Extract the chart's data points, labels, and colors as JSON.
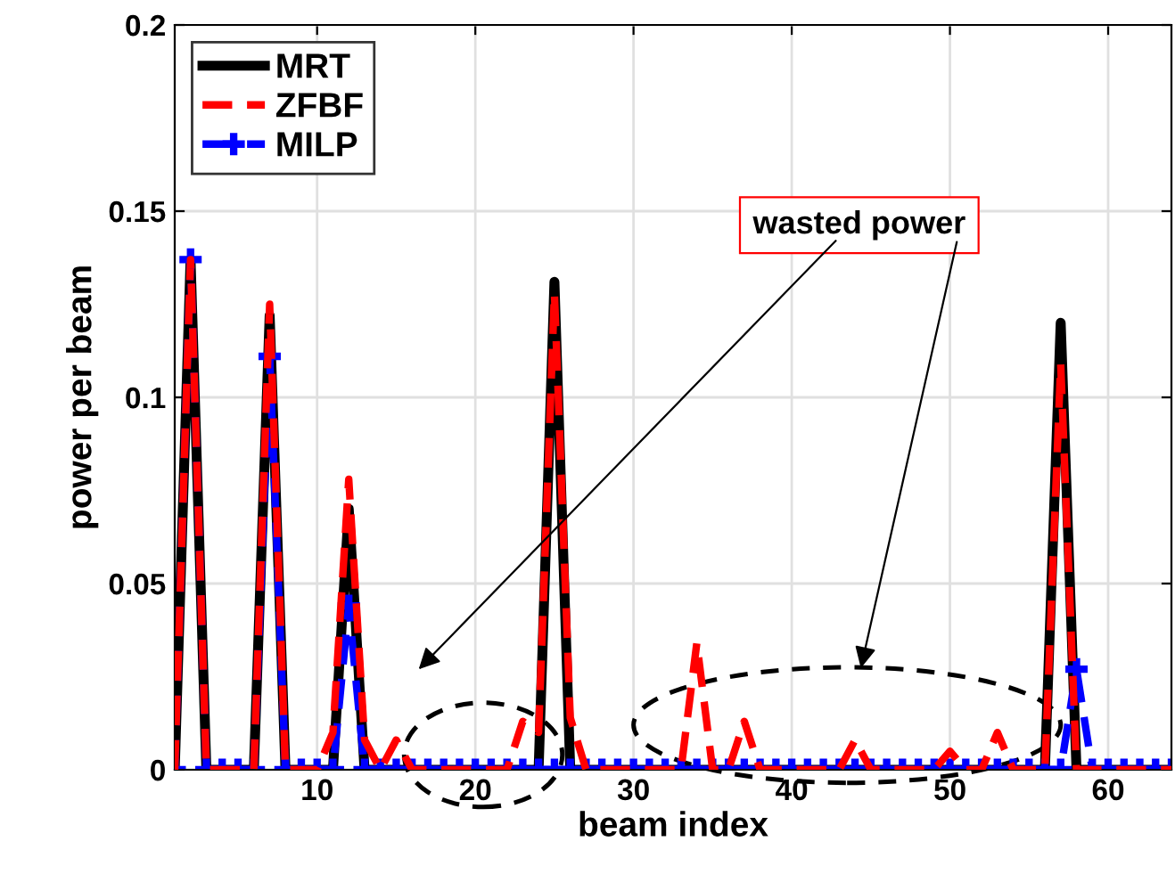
{
  "chart_data": {
    "type": "line",
    "xlabel": "beam index",
    "ylabel": "power per beam",
    "x": [
      1,
      2,
      3,
      4,
      5,
      6,
      7,
      8,
      9,
      10,
      11,
      12,
      13,
      14,
      15,
      16,
      17,
      18,
      19,
      20,
      21,
      22,
      23,
      24,
      25,
      26,
      27,
      28,
      29,
      30,
      31,
      32,
      33,
      34,
      35,
      36,
      37,
      38,
      39,
      40,
      41,
      42,
      43,
      44,
      45,
      46,
      47,
      48,
      49,
      50,
      51,
      52,
      53,
      54,
      55,
      56,
      57,
      58,
      59,
      60,
      61,
      62,
      63,
      64
    ],
    "series": [
      {
        "name": "MRT",
        "color": "#000000",
        "line_style": "solid",
        "marker": "none",
        "values": [
          0,
          0.137,
          0,
          0,
          0,
          0,
          0.122,
          0,
          0,
          0,
          0,
          0.07,
          0,
          0,
          0,
          0,
          0,
          0,
          0,
          0,
          0,
          0,
          0,
          0,
          0.131,
          0,
          0,
          0,
          0,
          0,
          0,
          0,
          0,
          0,
          0,
          0,
          0,
          0,
          0,
          0,
          0,
          0,
          0,
          0,
          0,
          0,
          0,
          0,
          0,
          0,
          0,
          0,
          0,
          0,
          0,
          0,
          0.12,
          0,
          0,
          0,
          0,
          0,
          0,
          0
        ]
      },
      {
        "name": "ZFBF",
        "color": "#ff0000",
        "line_style": "dashed",
        "marker": "none",
        "values": [
          0,
          0.137,
          0,
          0,
          0,
          0,
          0.125,
          0,
          0,
          0,
          0.01,
          0.078,
          0.008,
          0,
          0.008,
          0,
          0,
          0,
          0,
          0,
          0,
          0,
          0.013,
          0.01,
          0.128,
          0.014,
          0,
          0,
          0,
          0,
          0,
          0,
          0,
          0.034,
          0,
          0,
          0.013,
          0,
          0,
          0,
          0,
          0,
          0,
          0.008,
          0,
          0,
          0,
          0,
          0,
          0.005,
          0,
          0,
          0.01,
          0,
          0,
          0,
          0.109,
          0,
          0,
          0,
          0,
          0,
          0,
          0
        ]
      },
      {
        "name": "MILP",
        "color": "#0000ff",
        "line_style": "dashed",
        "marker": "cross",
        "values": [
          0,
          0.137,
          0,
          0,
          0,
          0,
          0.111,
          0,
          0,
          0,
          0,
          0.044,
          0,
          0,
          0,
          0,
          0,
          0,
          0,
          0,
          0,
          0,
          0,
          0,
          0,
          0,
          0,
          0,
          0,
          0,
          0,
          0,
          0,
          0,
          0,
          0,
          0,
          0,
          0,
          0,
          0,
          0,
          0,
          0,
          0,
          0,
          0,
          0,
          0,
          0,
          0,
          0,
          0,
          0,
          0,
          0,
          0,
          0.027,
          0,
          0,
          0,
          0,
          0,
          0
        ]
      }
    ],
    "xlim": [
      1,
      64
    ],
    "xticks": [
      10,
      20,
      30,
      40,
      50,
      60
    ],
    "ylim": [
      0,
      0.2
    ],
    "yticks": [
      0,
      0.05,
      {
        "value": 0.1,
        "label": "0.1"
      },
      0.15,
      {
        "value": 0.2,
        "label": "0.2"
      }
    ],
    "grid": true,
    "legend": "top left",
    "annotations": [
      "wasted power"
    ]
  }
}
